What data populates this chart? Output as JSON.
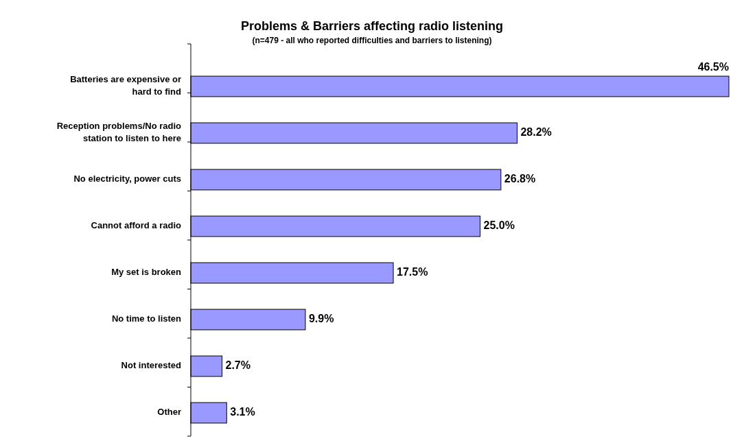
{
  "chart_data": {
    "type": "bar",
    "orientation": "horizontal",
    "title": "Problems & Barriers affecting radio listening",
    "subtitle": "(n=479 - all who reported difficulties and barriers to listening)",
    "categories": [
      "Batteries are expensive or hard to find",
      "Reception problems/No radio station to listen to here",
      "No electricity, power cuts",
      "Cannot afford a radio",
      "My set is broken",
      "No time to listen",
      "Not interested",
      "Other"
    ],
    "values": [
      46.5,
      28.2,
      26.8,
      25.0,
      17.5,
      9.9,
      2.7,
      3.1
    ],
    "value_labels": [
      "46.5%",
      "28.2%",
      "26.8%",
      "25.0%",
      "17.5%",
      "9.9%",
      "2.7%",
      "3.1%"
    ],
    "color": "#9999ff"
  }
}
